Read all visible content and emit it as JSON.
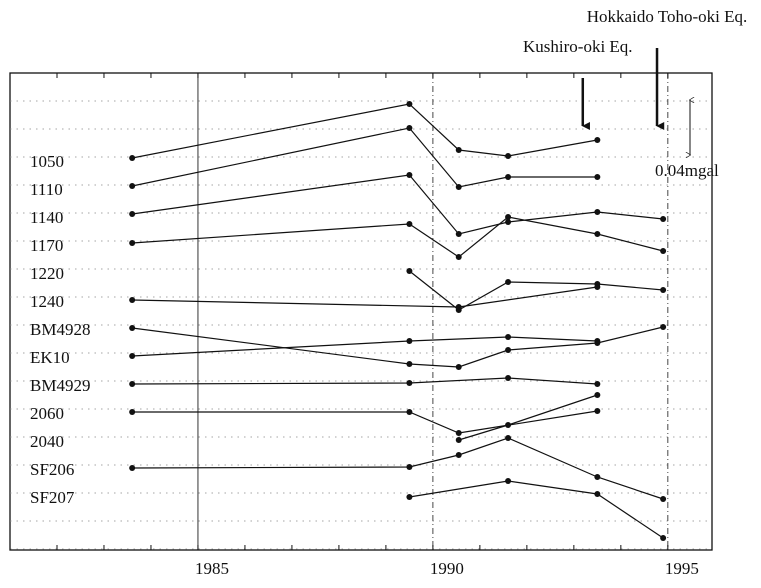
{
  "chart_data": {
    "type": "line",
    "xlim": [
      1981,
      1995.94
    ],
    "xticks": [
      1985,
      1990,
      1995
    ],
    "ylim": [
      0,
      47.7
    ],
    "color": "#111111",
    "series": [
      {
        "name": "1050",
        "x": [
          1983.6,
          1989.5,
          1990.55,
          1991.6,
          1993.5
        ],
        "values": [
          39.2,
          44.6,
          40.0,
          39.4,
          41.0
        ]
      },
      {
        "name": "1110",
        "x": [
          1983.6,
          1989.5,
          1990.55,
          1991.6,
          1993.5
        ],
        "values": [
          36.4,
          42.2,
          36.3,
          37.3,
          37.3
        ]
      },
      {
        "name": "1140",
        "x": [
          1983.6,
          1989.5,
          1990.55,
          1991.6,
          1993.5,
          1994.9
        ],
        "values": [
          33.6,
          37.5,
          31.6,
          32.8,
          33.8,
          33.1
        ]
      },
      {
        "name": "1170",
        "x": [
          1983.6,
          1989.5,
          1990.55,
          1991.6,
          1993.5,
          1994.9
        ],
        "values": [
          30.7,
          32.6,
          29.3,
          33.3,
          31.6,
          29.9
        ]
      },
      {
        "name": "1220",
        "x": [
          1989.5,
          1990.55,
          1991.6,
          1993.5,
          1994.9
        ],
        "values": [
          27.9,
          24.0,
          26.8,
          26.6,
          26.0
        ]
      },
      {
        "name": "1240",
        "x": [
          1983.6,
          1990.55,
          1993.5
        ],
        "values": [
          25.0,
          24.3,
          26.3
        ]
      },
      {
        "name": "BM4928",
        "x": [
          1983.6,
          1989.5,
          1990.55,
          1991.6,
          1993.5,
          1994.9
        ],
        "values": [
          22.2,
          18.6,
          18.3,
          20.0,
          20.7,
          22.3
        ]
      },
      {
        "name": "EK10",
        "x": [
          1983.6,
          1989.5,
          1991.6,
          1993.5
        ],
        "values": [
          19.4,
          20.9,
          21.3,
          20.9
        ]
      },
      {
        "name": "BM4929",
        "x": [
          1983.6,
          1989.5,
          1991.6,
          1993.5
        ],
        "values": [
          16.6,
          16.7,
          17.2,
          16.6
        ]
      },
      {
        "name": "2060",
        "x": [
          1983.6,
          1989.5,
          1990.55,
          1993.5
        ],
        "values": [
          13.8,
          13.8,
          11.7,
          13.9
        ]
      },
      {
        "name": "2040",
        "x": [
          1990.55,
          1991.6,
          1993.5
        ],
        "values": [
          11.0,
          12.5,
          15.5
        ]
      },
      {
        "name": "SF206",
        "x": [
          1983.6,
          1989.5,
          1990.55,
          1991.6,
          1993.5,
          1994.9
        ],
        "values": [
          8.2,
          8.3,
          9.5,
          11.2,
          7.3,
          5.1
        ]
      },
      {
        "name": "SF207",
        "x": [
          1989.5,
          1991.6,
          1993.5,
          1994.9
        ],
        "values": [
          5.3,
          6.9,
          5.6,
          1.2
        ]
      }
    ],
    "annotations": [
      {
        "text": "Kushiro-oki Eq.",
        "x": 1993.19
      },
      {
        "text": "Hokkaido Toho-oki Eq.",
        "x": 1994.77
      }
    ],
    "scale_bar": {
      "from": 45.0,
      "to": 39.5,
      "label": "0.04mgal"
    }
  }
}
